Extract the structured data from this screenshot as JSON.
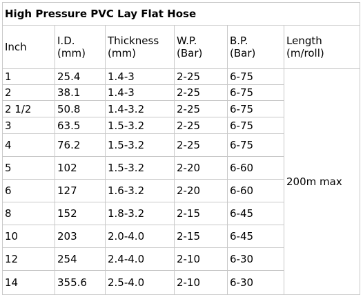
{
  "title": "High Pressure PVC Lay Flat Hose",
  "headers": [
    {
      "line1": "Inch",
      "line2": ""
    },
    {
      "line1": "I.D.",
      "line2": "(mm)"
    },
    {
      "line1": "Thickness",
      "line2": "(mm)"
    },
    {
      "line1": "W.P.",
      "line2": "(Bar)"
    },
    {
      "line1": "B.P.",
      "line2": "(Bar)"
    },
    {
      "line1": "Length",
      "line2": "(m/roll)"
    }
  ],
  "rows": [
    {
      "inch": "1",
      "id": "25.4",
      "thickness": "1.4-3",
      "wp": "2-25",
      "bp": "6-75"
    },
    {
      "inch": "2",
      "id": "38.1",
      "thickness": "1.4-3",
      "wp": "2-25",
      "bp": "6-75"
    },
    {
      "inch": "2 1/2",
      "id": "50.8",
      "thickness": "1.4-3.2",
      "wp": "2-25",
      "bp": "6-75"
    },
    {
      "inch": "3",
      "id": "63.5",
      "thickness": "1.5-3.2",
      "wp": "2-25",
      "bp": "6-75"
    },
    {
      "inch": "4",
      "id": "76.2",
      "thickness": "1.5-3.2",
      "wp": "2-25",
      "bp": "6-75"
    },
    {
      "inch": "5",
      "id": "102",
      "thickness": "1.5-3.2",
      "wp": "2-20",
      "bp": "6-60"
    },
    {
      "inch": "6",
      "id": "127",
      "thickness": "1.6-3.2",
      "wp": "2-20",
      "bp": "6-60"
    },
    {
      "inch": "8",
      "id": "152",
      "thickness": "1.8-3.2",
      "wp": "2-15",
      "bp": "6-45"
    },
    {
      "inch": "10",
      "id": "203",
      "thickness": "2.0-4.0",
      "wp": "2-15",
      "bp": "6-45"
    },
    {
      "inch": "12",
      "id": "254",
      "thickness": "2.4-4.0",
      "wp": "2-10",
      "bp": "6-30"
    },
    {
      "inch": "14",
      "id": "355.6",
      "thickness": "2.5-4.0",
      "wp": "2-10",
      "bp": "6-30"
    }
  ],
  "length_value": "200m max"
}
